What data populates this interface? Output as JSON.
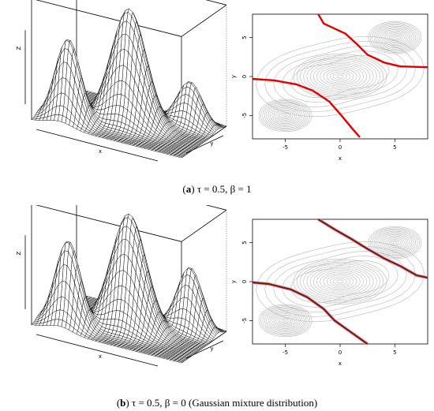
{
  "figure": {
    "panels": [
      {
        "id": "a",
        "caption_letter": "a",
        "caption_text": "τ = 0.5, β = 1",
        "boundary_color": "#e00000",
        "boundary_outline": "",
        "contour_color": "#b8b8b8",
        "surface_axis_labels": {
          "x": "x",
          "y": "y",
          "z": "Z"
        },
        "contour_axis_labels": {
          "x": "x",
          "y": "y"
        },
        "x_ticks": [
          "-5",
          "0",
          "5"
        ],
        "y_ticks": [
          "-5",
          "0",
          "5"
        ]
      },
      {
        "id": "b",
        "caption_letter": "b",
        "caption_text": "τ = 0.5, β = 0 (Gaussian mixture distribution)",
        "boundary_color": "#6b2a00",
        "boundary_outline": "#ff99ee",
        "contour_color": "#b8b8b8",
        "surface_axis_labels": {
          "x": "x",
          "y": "y",
          "z": "Z"
        },
        "contour_axis_labels": {
          "x": "x",
          "y": "y"
        },
        "x_ticks": [
          "-5",
          "0",
          "5"
        ],
        "y_ticks": [
          "-5",
          "0",
          "5"
        ]
      }
    ]
  },
  "chart_data": [
    {
      "type": "surface",
      "panel": "a",
      "xlabel": "x",
      "ylabel": "y",
      "zlabel": "Z",
      "modes": [
        {
          "x": -5,
          "y": -5,
          "relative_height": 0.72
        },
        {
          "x": 0,
          "y": 0,
          "relative_height": 1.0
        },
        {
          "x": 5,
          "y": 5,
          "relative_height": 0.38
        }
      ]
    },
    {
      "type": "contour",
      "panel": "a",
      "xlabel": "x",
      "ylabel": "y",
      "xlim": [
        -8,
        8
      ],
      "ylim": [
        -8,
        8
      ],
      "x_ticks": [
        -5,
        0,
        5
      ],
      "y_ticks": [
        -5,
        0,
        5
      ],
      "centers": [
        [
          -5,
          -5
        ],
        [
          0,
          0
        ],
        [
          5,
          5
        ]
      ],
      "boundaries": [
        [
          [
            -2,
            8
          ],
          [
            -1.5,
            6.8
          ],
          [
            0.5,
            5.5
          ],
          [
            1.5,
            4.2
          ],
          [
            2.5,
            2.8
          ],
          [
            4,
            1.8
          ],
          [
            5.5,
            1.3
          ],
          [
            8,
            1.2
          ]
        ],
        [
          [
            -8,
            -0.3
          ],
          [
            -6,
            -0.5
          ],
          [
            -4,
            -1.0
          ],
          [
            -2.5,
            -1.8
          ],
          [
            -1,
            -3.2
          ],
          [
            0,
            -4.8
          ],
          [
            1,
            -6.5
          ],
          [
            1.8,
            -7.8
          ]
        ]
      ]
    },
    {
      "type": "surface",
      "panel": "b",
      "xlabel": "x",
      "ylabel": "y",
      "zlabel": "Z",
      "modes": [
        {
          "x": -5,
          "y": -5,
          "relative_height": 0.75
        },
        {
          "x": 0,
          "y": 0,
          "relative_height": 1.0
        },
        {
          "x": 5,
          "y": 5,
          "relative_height": 0.55
        }
      ]
    },
    {
      "type": "contour",
      "panel": "b",
      "xlabel": "x",
      "ylabel": "y",
      "xlim": [
        -8,
        8
      ],
      "ylim": [
        -8,
        8
      ],
      "x_ticks": [
        -5,
        0,
        5
      ],
      "y_ticks": [
        -5,
        0,
        5
      ],
      "centers": [
        [
          -5,
          -5
        ],
        [
          0,
          0
        ],
        [
          5,
          5
        ]
      ],
      "boundaries": [
        [
          [
            -2,
            8
          ],
          [
            -0.5,
            6.7
          ],
          [
            1,
            5.5
          ],
          [
            2.5,
            4.2
          ],
          [
            4,
            3
          ],
          [
            5.5,
            2
          ],
          [
            7,
            0.8
          ],
          [
            8,
            0.5
          ]
        ],
        [
          [
            -8,
            -0.1
          ],
          [
            -6.5,
            -0.3
          ],
          [
            -4.5,
            -1
          ],
          [
            -3,
            -2
          ],
          [
            -1.5,
            -3.5
          ],
          [
            -0.5,
            -5
          ],
          [
            1,
            -6.5
          ],
          [
            2.5,
            -8
          ]
        ]
      ]
    }
  ]
}
